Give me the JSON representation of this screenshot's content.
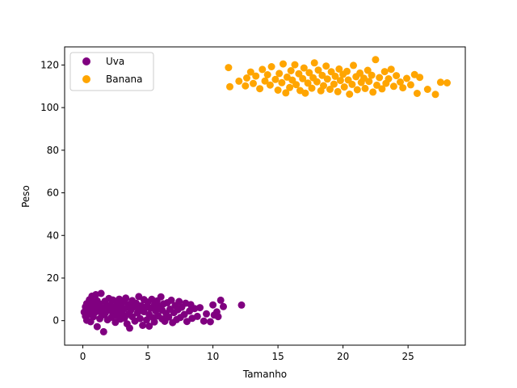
{
  "chart_data": {
    "type": "scatter",
    "title": "",
    "xlabel": "Tamanho",
    "ylabel": "Peso",
    "xlim": [
      -1.4,
      29.4
    ],
    "ylim": [
      -11.5,
      128.5
    ],
    "xticks": [
      0,
      5,
      10,
      15,
      20,
      25
    ],
    "yticks": [
      0,
      20,
      40,
      60,
      80,
      100,
      120
    ],
    "grid": false,
    "legend": {
      "position": "top-left"
    },
    "series": [
      {
        "name": "Uva",
        "color": "#800080",
        "points": [
          [
            0.1,
            4.0
          ],
          [
            0.2,
            2.1
          ],
          [
            0.2,
            6.5
          ],
          [
            0.3,
            8.0
          ],
          [
            0.3,
            0.2
          ],
          [
            0.4,
            5.2
          ],
          [
            0.5,
            9.8
          ],
          [
            0.5,
            3.1
          ],
          [
            0.6,
            7.4
          ],
          [
            0.6,
            -0.5
          ],
          [
            0.7,
            11.5
          ],
          [
            0.7,
            5.6
          ],
          [
            0.8,
            1.8
          ],
          [
            0.8,
            8.6
          ],
          [
            0.9,
            3.7
          ],
          [
            1.0,
            12.2
          ],
          [
            1.0,
            6.1
          ],
          [
            1.1,
            -2.8
          ],
          [
            1.1,
            9.3
          ],
          [
            1.2,
            4.4
          ],
          [
            1.3,
            0.9
          ],
          [
            1.3,
            7.8
          ],
          [
            1.4,
            12.8
          ],
          [
            1.5,
            2.6
          ],
          [
            1.5,
            5.9
          ],
          [
            1.6,
            -5.2
          ],
          [
            1.7,
            9.1
          ],
          [
            1.7,
            3.3
          ],
          [
            1.8,
            6.7
          ],
          [
            1.9,
            0.4
          ],
          [
            2.0,
            10.4
          ],
          [
            2.0,
            4.8
          ],
          [
            2.1,
            7.2
          ],
          [
            2.2,
            1.6
          ],
          [
            2.3,
            9.7
          ],
          [
            2.3,
            3.9
          ],
          [
            2.4,
            6.0
          ],
          [
            2.5,
            -0.8
          ],
          [
            2.6,
            8.3
          ],
          [
            2.6,
            2.4
          ],
          [
            2.7,
            5.3
          ],
          [
            2.8,
            10.1
          ],
          [
            2.9,
            0.7
          ],
          [
            2.9,
            6.9
          ],
          [
            3.0,
            3.5
          ],
          [
            3.1,
            8.9
          ],
          [
            3.2,
            1.2
          ],
          [
            3.2,
            5.7
          ],
          [
            3.3,
            10.6
          ],
          [
            3.4,
            -1.5
          ],
          [
            3.5,
            7.6
          ],
          [
            3.5,
            3.0
          ],
          [
            3.6,
            -3.5
          ],
          [
            3.7,
            5.0
          ],
          [
            3.8,
            9.4
          ],
          [
            3.8,
            1.9
          ],
          [
            3.9,
            6.4
          ],
          [
            4.0,
            -0.2
          ],
          [
            4.1,
            8.1
          ],
          [
            4.2,
            3.6
          ],
          [
            4.3,
            11.3
          ],
          [
            4.3,
            5.5
          ],
          [
            4.4,
            1.0
          ],
          [
            4.5,
            7.0
          ],
          [
            4.6,
            -2.2
          ],
          [
            4.7,
            9.9
          ],
          [
            4.7,
            4.2
          ],
          [
            4.8,
            6.2
          ],
          [
            4.9,
            0.3
          ],
          [
            5.0,
            8.7
          ],
          [
            5.1,
            -2.6
          ],
          [
            5.1,
            2.8
          ],
          [
            5.2,
            5.8
          ],
          [
            5.3,
            10.0
          ],
          [
            5.4,
            1.4
          ],
          [
            5.5,
            7.3
          ],
          [
            5.5,
            -0.6
          ],
          [
            5.6,
            4.6
          ],
          [
            5.7,
            9.2
          ],
          [
            5.8,
            2.2
          ],
          [
            5.9,
            6.6
          ],
          [
            6.0,
            11.2
          ],
          [
            6.1,
            0.8
          ],
          [
            6.1,
            4.9
          ],
          [
            6.2,
            7.9
          ],
          [
            6.3,
            -0.3
          ],
          [
            6.4,
            3.4
          ],
          [
            6.5,
            8.4
          ],
          [
            6.6,
            1.7
          ],
          [
            6.7,
            5.4
          ],
          [
            6.8,
            9.6
          ],
          [
            6.9,
            -0.9
          ],
          [
            7.0,
            3.8
          ],
          [
            7.1,
            7.1
          ],
          [
            7.2,
            0.5
          ],
          [
            7.3,
            5.1
          ],
          [
            7.4,
            9.0
          ],
          [
            7.5,
            1.5
          ],
          [
            7.6,
            6.3
          ],
          [
            7.8,
            2.9
          ],
          [
            7.9,
            8.2
          ],
          [
            8.0,
            -0.4
          ],
          [
            8.2,
            4.5
          ],
          [
            8.3,
            7.5
          ],
          [
            8.4,
            1.1
          ],
          [
            8.6,
            5.7
          ],
          [
            8.8,
            2.0
          ],
          [
            9.0,
            6.1
          ],
          [
            9.3,
            -0.2
          ],
          [
            9.5,
            3.2
          ],
          [
            9.8,
            -0.5
          ],
          [
            10.0,
            7.4
          ],
          [
            10.1,
            2.6
          ],
          [
            10.3,
            4.1
          ],
          [
            10.6,
            9.6
          ],
          [
            10.8,
            6.6
          ],
          [
            10.4,
            1.9
          ],
          [
            12.2,
            7.3
          ]
        ]
      },
      {
        "name": "Banana",
        "color": "#ffa500",
        "points": [
          [
            11.2,
            118.8
          ],
          [
            11.3,
            109.8
          ],
          [
            12.0,
            112.4
          ],
          [
            12.5,
            110.2
          ],
          [
            12.6,
            113.9
          ],
          [
            12.9,
            116.7
          ],
          [
            13.1,
            111.3
          ],
          [
            13.3,
            114.8
          ],
          [
            13.6,
            108.9
          ],
          [
            13.8,
            117.9
          ],
          [
            14.0,
            112.5
          ],
          [
            14.2,
            115.4
          ],
          [
            14.4,
            110.6
          ],
          [
            14.5,
            119.2
          ],
          [
            14.8,
            113.2
          ],
          [
            15.0,
            108.2
          ],
          [
            15.1,
            116.0
          ],
          [
            15.3,
            111.7
          ],
          [
            15.4,
            120.5
          ],
          [
            15.6,
            106.9
          ],
          [
            15.7,
            114.3
          ],
          [
            15.9,
            109.4
          ],
          [
            16.0,
            117.3
          ],
          [
            16.1,
            112.9
          ],
          [
            16.3,
            120.1
          ],
          [
            16.4,
            110.8
          ],
          [
            16.6,
            115.9
          ],
          [
            16.7,
            108.0
          ],
          [
            16.9,
            113.6
          ],
          [
            17.0,
            118.6
          ],
          [
            17.1,
            106.8
          ],
          [
            17.3,
            111.5
          ],
          [
            17.4,
            116.4
          ],
          [
            17.6,
            109.1
          ],
          [
            17.7,
            114.0
          ],
          [
            17.8,
            121.0
          ],
          [
            18.0,
            112.1
          ],
          [
            18.1,
            117.6
          ],
          [
            18.3,
            107.9
          ],
          [
            18.4,
            115.1
          ],
          [
            18.5,
            110.3
          ],
          [
            18.7,
            119.5
          ],
          [
            18.8,
            113.4
          ],
          [
            19.0,
            108.6
          ],
          [
            19.1,
            116.8
          ],
          [
            19.3,
            111.0
          ],
          [
            19.4,
            114.7
          ],
          [
            19.6,
            107.5
          ],
          [
            19.7,
            118.1
          ],
          [
            19.8,
            112.7
          ],
          [
            20.0,
            115.6
          ],
          [
            20.1,
            109.7
          ],
          [
            20.3,
            117.0
          ],
          [
            20.4,
            113.0
          ],
          [
            20.5,
            106.3
          ],
          [
            20.7,
            110.9
          ],
          [
            20.8,
            119.8
          ],
          [
            21.0,
            114.5
          ],
          [
            21.1,
            108.4
          ],
          [
            21.3,
            116.2
          ],
          [
            21.4,
            111.8
          ],
          [
            21.6,
            113.8
          ],
          [
            21.7,
            109.0
          ],
          [
            21.9,
            117.5
          ],
          [
            22.0,
            112.3
          ],
          [
            22.2,
            115.2
          ],
          [
            22.3,
            107.3
          ],
          [
            22.5,
            122.5
          ],
          [
            22.6,
            110.5
          ],
          [
            22.8,
            114.1
          ],
          [
            23.0,
            108.8
          ],
          [
            23.2,
            116.9
          ],
          [
            23.3,
            111.4
          ],
          [
            23.5,
            113.5
          ],
          [
            23.7,
            118.0
          ],
          [
            23.9,
            110.0
          ],
          [
            24.1,
            115.0
          ],
          [
            24.4,
            112.0
          ],
          [
            24.6,
            109.3
          ],
          [
            24.9,
            113.7
          ],
          [
            25.2,
            110.7
          ],
          [
            25.5,
            115.5
          ],
          [
            25.7,
            106.7
          ],
          [
            25.9,
            114.2
          ],
          [
            26.5,
            108.6
          ],
          [
            27.1,
            106.2
          ],
          [
            27.5,
            111.9
          ],
          [
            28.0,
            111.6
          ]
        ]
      }
    ]
  }
}
